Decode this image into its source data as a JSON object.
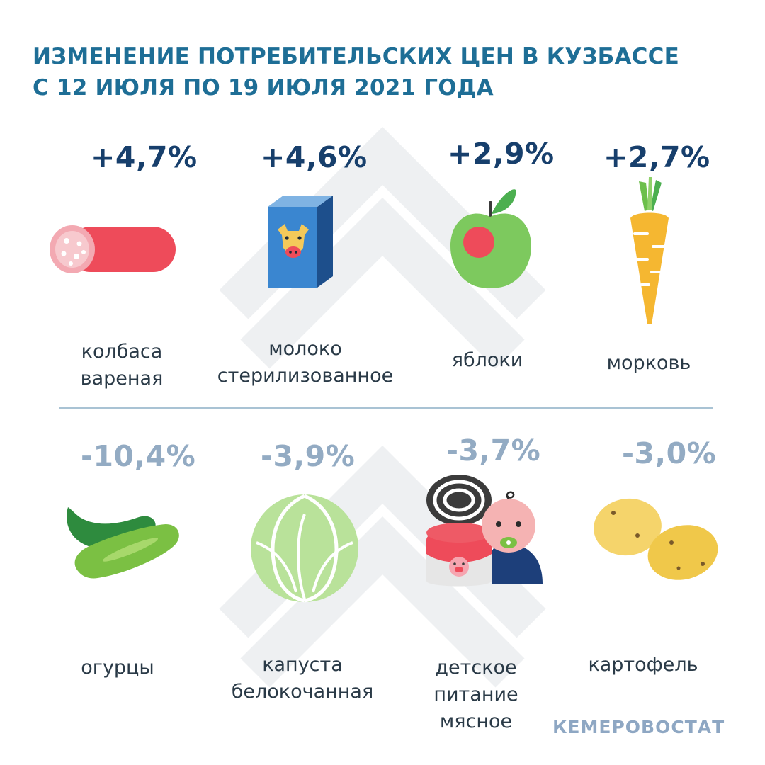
{
  "title": {
    "line1": "ИЗМЕНЕНИЕ ПОТРЕБИТЕЛЬСКИХ ЦЕН В КУЗБАССЕ",
    "line2": "С 12 ИЮЛЯ ПО 19 ИЮЛЯ 2021 ГОДА"
  },
  "increases": [
    {
      "value": "+4,7%",
      "label_lines": [
        "колбаса",
        "вареная"
      ],
      "icon": "sausage-icon"
    },
    {
      "value": "+4,6%",
      "label_lines": [
        "молоко",
        "стерилизованное"
      ],
      "icon": "milk-carton-icon"
    },
    {
      "value": "+2,9%",
      "label_lines": [
        "яблоки"
      ],
      "icon": "apple-icon"
    },
    {
      "value": "+2,7%",
      "label_lines": [
        "морковь"
      ],
      "icon": "carrot-icon"
    }
  ],
  "decreases": [
    {
      "value": "-10,4%",
      "label_lines": [
        "огурцы"
      ],
      "icon": "cucumber-icon"
    },
    {
      "value": "-3,9%",
      "label_lines": [
        "капуста",
        "белокочанная"
      ],
      "icon": "cabbage-icon"
    },
    {
      "value": "-3,7%",
      "label_lines": [
        "детское",
        "питание",
        "мясное"
      ],
      "icon": "baby-food-can-icon"
    },
    {
      "value": "-3,0%",
      "label_lines": [
        "картофель"
      ],
      "icon": "potato-icon"
    }
  ],
  "source": "КЕМЕРОВОСТАТ",
  "colors": {
    "title": "#1e6e96",
    "increase": "#173f6c",
    "decrease": "#93abc3",
    "divider": "#a9c3d4"
  }
}
